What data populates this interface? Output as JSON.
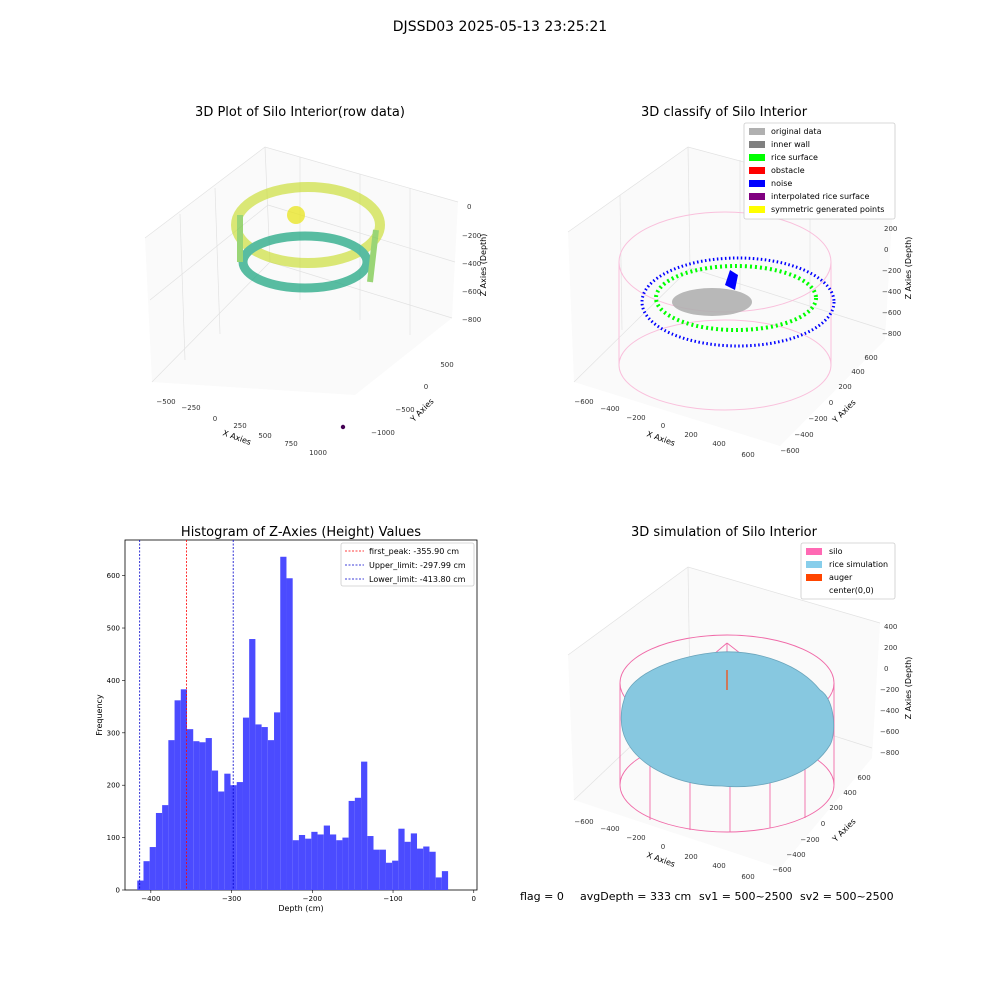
{
  "suptitle": "DJSSD03 2025-05-13 23:25:21",
  "colors": {
    "hist_bar": "#4b4bff",
    "first_peak_line": "#ff0000",
    "limit_line": "#0000cc",
    "silo_mesh": "#f06aa8",
    "rice": "#87c8e0",
    "auger": "#ff4500"
  },
  "footer": {
    "flag": "flag = 0",
    "avg": "avgDepth = 333 cm",
    "sv1": "sv1 = 500~2500",
    "sv2": "sv2 = 500~2500"
  },
  "chart_data": [
    {
      "type": "scatter",
      "title": "3D Plot of Silo Interior(row data)",
      "xlabel": "X Axies",
      "ylabel": "Y Axies",
      "zlabel": "Z Axies (Depth)",
      "x_ticks": [
        "−500",
        "−250",
        "0",
        "250",
        "500",
        "750",
        "1000"
      ],
      "y_ticks": [
        "−1000",
        "−500",
        "0",
        "500"
      ],
      "z_ticks": [
        "0",
        "−200",
        "−400",
        "−600",
        "−800"
      ],
      "colormap": "viridis"
    },
    {
      "type": "scatter",
      "title": "3D classify of Silo Interior",
      "xlabel": "X Axies",
      "ylabel": "Y Axies",
      "zlabel": "Z Axies (Depth)",
      "x_ticks": [
        "−600",
        "−400",
        "−200",
        "0",
        "200",
        "400",
        "600"
      ],
      "y_ticks": [
        "−600",
        "−400",
        "−200",
        "0",
        "200",
        "400",
        "600"
      ],
      "z_ticks": [
        "200",
        "0",
        "−200",
        "−400",
        "−600",
        "−800"
      ],
      "legend": [
        {
          "label": "original data",
          "color": "#b0b0b0"
        },
        {
          "label": "inner wall",
          "color": "#808080"
        },
        {
          "label": "rice surface",
          "color": "#00ff00"
        },
        {
          "label": "obstacle",
          "color": "#ff0000"
        },
        {
          "label": "noise",
          "color": "#0000ff"
        },
        {
          "label": "interpolated rice surface",
          "color": "#800080"
        },
        {
          "label": "symmetric generated points",
          "color": "#ffff00"
        }
      ],
      "legend_loc": "upper right"
    },
    {
      "type": "bar",
      "title": "Histogram of Z-Axies (Height) Values",
      "xlabel": "Depth (cm)",
      "ylabel": "Frequency",
      "xlim": [
        -432,
        4
      ],
      "ylim": [
        0,
        668
      ],
      "x_ticks": [
        -400,
        -300,
        -200,
        -100,
        0
      ],
      "y_ticks": [
        0,
        100,
        200,
        300,
        400,
        500,
        600
      ],
      "bin_start": -416.8,
      "bin_width": 7.7,
      "values": [
        18,
        55,
        82,
        147,
        162,
        286,
        362,
        383,
        307,
        284,
        282,
        290,
        228,
        188,
        222,
        200,
        206,
        329,
        479,
        316,
        311,
        286,
        339,
        636,
        595,
        95,
        105,
        98,
        111,
        106,
        123,
        106,
        95,
        100,
        170,
        176,
        245,
        103,
        77,
        77,
        52,
        56,
        117,
        92,
        108,
        79,
        83,
        73,
        24,
        36
      ],
      "vlines": [
        {
          "label": "first_peak: -355.90 cm",
          "x": -355.9,
          "color": "#ff0000"
        },
        {
          "label": "Upper_limit: -297.99 cm",
          "x": -297.99,
          "color": "#0000cc"
        },
        {
          "label": "Lower_limit: -413.80 cm",
          "x": -413.8,
          "color": "#0000cc"
        }
      ],
      "legend_loc": "upper right"
    },
    {
      "type": "area",
      "title": "3D simulation of Silo Interior",
      "xlabel": "X Axies",
      "ylabel": "Y Axies",
      "zlabel": "Z Axies (Depth)",
      "x_ticks": [
        "−600",
        "−400",
        "−200",
        "0",
        "200",
        "400",
        "600"
      ],
      "y_ticks": [
        "−600",
        "−400",
        "−200",
        "0",
        "200",
        "400",
        "600"
      ],
      "z_ticks": [
        "400",
        "200",
        "0",
        "−200",
        "−400",
        "−600",
        "−800"
      ],
      "legend": [
        {
          "label": "silo",
          "color": "#ff69b4"
        },
        {
          "label": "rice simulation",
          "color": "#87ceeb"
        },
        {
          "label": "auger",
          "color": "#ff4500"
        },
        {
          "label": "center(0,0)",
          "color": "#ffffff"
        }
      ],
      "legend_loc": "upper right"
    }
  ]
}
